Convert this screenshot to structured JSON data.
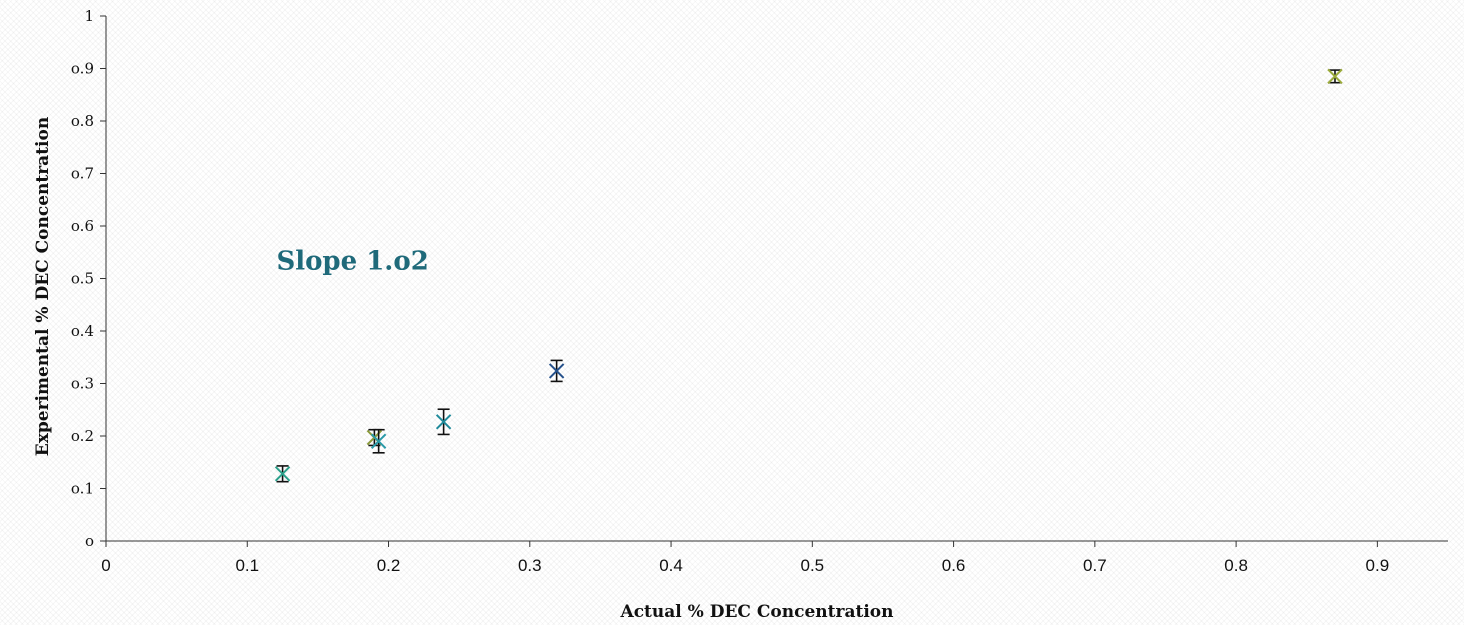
{
  "chart_data": {
    "type": "scatter",
    "title": "",
    "xlabel": "Actual % DEC Concentration",
    "ylabel": "Experimental % DEC Concentration",
    "xlim": [
      0,
      0.95
    ],
    "ylim": [
      0,
      1
    ],
    "x_ticks": [
      "0",
      "0.1",
      "0.2",
      "0.3",
      "0.4",
      "0.5",
      "0.6",
      "0.7",
      "0.8",
      "0.9"
    ],
    "y_ticks": [
      "0",
      "0.1",
      "0.2",
      "0.3",
      "0.4",
      "0.5",
      "0.6",
      "0.7",
      "0.8",
      "0.9",
      "1"
    ],
    "grid": false,
    "annotation": {
      "text": "Slope 1.02",
      "x": 0.115,
      "y": 0.54,
      "color": "#1f6a7a"
    },
    "points": [
      {
        "x": 0.125,
        "y": 0.128,
        "err": 0.015,
        "color": "#2aa08a"
      },
      {
        "x": 0.19,
        "y": 0.197,
        "err": 0.015,
        "color": "#8a9a3a"
      },
      {
        "x": 0.193,
        "y": 0.19,
        "err": 0.022,
        "color": "#2a9aa8"
      },
      {
        "x": 0.239,
        "y": 0.227,
        "err": 0.024,
        "color": "#1f8a9a"
      },
      {
        "x": 0.319,
        "y": 0.324,
        "err": 0.02,
        "color": "#24508a"
      },
      {
        "x": 0.87,
        "y": 0.885,
        "err": 0.012,
        "color": "#9aaa3a"
      }
    ]
  }
}
